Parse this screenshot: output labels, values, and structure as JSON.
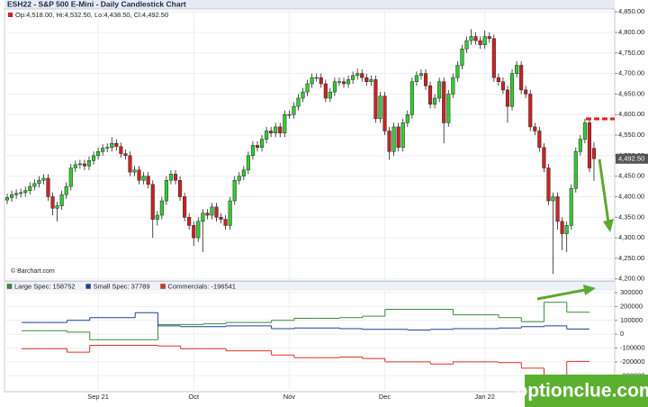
{
  "watermark": "optionclue.com",
  "chart_data": [
    {
      "type": "candlestick",
      "title": "ESH22 - S&P 500 E-Mini - Daily Candlestick Chart",
      "ohlc_label": "Op:4,518.00, Hi:4,532.50, Lo:4,438.50, Cl:4,492.50",
      "source": "© Barchart.com",
      "last_price_label": "4,492.50",
      "up_color": "#33cc33",
      "down_color": "#cc2222",
      "grid": true,
      "categories": [
        null,
        null,
        null,
        null,
        null,
        null,
        null,
        null,
        null,
        null,
        null,
        null,
        null,
        null,
        null,
        null,
        null,
        null,
        null,
        null,
        "Sep 21",
        null,
        null,
        null,
        null,
        null,
        null,
        null,
        null,
        null,
        null,
        null,
        null,
        null,
        null,
        null,
        null,
        null,
        null,
        null,
        null,
        "Oct",
        null,
        null,
        null,
        null,
        null,
        null,
        null,
        null,
        null,
        null,
        null,
        null,
        null,
        null,
        null,
        null,
        null,
        null,
        null,
        null,
        "Nov",
        null,
        null,
        null,
        null,
        null,
        null,
        null,
        null,
        null,
        null,
        null,
        null,
        null,
        null,
        null,
        null,
        null,
        null,
        null,
        null,
        "Dec",
        null,
        null,
        null,
        null,
        null,
        null,
        null,
        null,
        null,
        null,
        null,
        null,
        null,
        null,
        null,
        null,
        null,
        null,
        null,
        null,
        null,
        "Jan 22",
        null,
        null,
        null,
        null,
        null,
        null,
        null,
        null,
        null,
        null,
        null,
        null,
        null,
        null,
        null,
        null,
        null,
        null,
        null,
        null,
        null,
        null,
        null,
        null
      ],
      "open": [
        4392,
        4398,
        4405,
        4408,
        4410,
        4415,
        4425,
        4432,
        4440,
        4445,
        4400,
        4372,
        4378,
        4405,
        4425,
        4470,
        4478,
        4480,
        4475,
        4488,
        4500,
        4510,
        4518,
        4520,
        4530,
        4522,
        4505,
        4500,
        4460,
        4465,
        4440,
        4450,
        4430,
        4345,
        4355,
        4390,
        4440,
        4455,
        4440,
        4400,
        4350,
        4330,
        4300,
        4340,
        4360,
        4355,
        4375,
        4350,
        4345,
        4330,
        4390,
        4440,
        4450,
        4465,
        4500,
        4525,
        4520,
        4540,
        4560,
        4555,
        4570,
        4555,
        4600,
        4600,
        4620,
        4640,
        4655,
        4675,
        4690,
        4690,
        4675,
        4640,
        4655,
        4680,
        4680,
        4675,
        4685,
        4695,
        4700,
        4690,
        4680,
        4685,
        4590,
        4645,
        4560,
        4510,
        4570,
        4520,
        4580,
        4600,
        4680,
        4695,
        4700,
        4670,
        4625,
        4640,
        4680,
        4580,
        4650,
        4690,
        4720,
        4760,
        4780,
        4790,
        4780,
        4770,
        4790,
        4785,
        4690,
        4680,
        4660,
        4620,
        4700,
        4720,
        4660,
        4650,
        4570,
        4560,
        4520,
        4470,
        4390,
        4400,
        4340,
        4310,
        4330,
        4420,
        4510,
        4540,
        4580,
        4518
      ],
      "high": [
        4408,
        4415,
        4418,
        4420,
        4425,
        4435,
        4442,
        4450,
        4455,
        4455,
        4410,
        4388,
        4415,
        4435,
        4480,
        4488,
        4490,
        4490,
        4498,
        4510,
        4520,
        4528,
        4530,
        4545,
        4540,
        4532,
        4515,
        4510,
        4475,
        4475,
        4460,
        4460,
        4440,
        4365,
        4400,
        4450,
        4465,
        4465,
        4450,
        4410,
        4360,
        4340,
        4350,
        4370,
        4370,
        4385,
        4385,
        4360,
        4355,
        4400,
        4450,
        4460,
        4475,
        4510,
        4535,
        4535,
        4550,
        4570,
        4570,
        4580,
        4580,
        4610,
        4610,
        4630,
        4650,
        4665,
        4685,
        4700,
        4700,
        4700,
        4685,
        4665,
        4690,
        4690,
        4690,
        4695,
        4705,
        4712,
        4710,
        4700,
        4695,
        4695,
        4655,
        4655,
        4570,
        4580,
        4580,
        4590,
        4610,
        4690,
        4705,
        4710,
        4710,
        4680,
        4650,
        4690,
        4690,
        4660,
        4700,
        4730,
        4770,
        4790,
        4808,
        4800,
        4790,
        4805,
        4800,
        4795,
        4700,
        4690,
        4670,
        4710,
        4730,
        4730,
        4670,
        4660,
        4580,
        4570,
        4530,
        4480,
        4410,
        4410,
        4350,
        4340,
        4430,
        4520,
        4550,
        4590,
        4590,
        4532.5
      ],
      "low": [
        4382,
        4388,
        4395,
        4398,
        4400,
        4405,
        4415,
        4422,
        4430,
        4390,
        4355,
        4340,
        4368,
        4395,
        4415,
        4460,
        4468,
        4465,
        4465,
        4478,
        4490,
        4500,
        4508,
        4510,
        4512,
        4495,
        4490,
        4450,
        4450,
        4430,
        4430,
        4420,
        4300,
        4330,
        4345,
        4380,
        4430,
        4430,
        4390,
        4340,
        4320,
        4280,
        4290,
        4265,
        4345,
        4345,
        4340,
        4335,
        4320,
        4320,
        4380,
        4430,
        4440,
        4455,
        4490,
        4510,
        4510,
        4530,
        4545,
        4545,
        4545,
        4545,
        4590,
        4590,
        4610,
        4630,
        4645,
        4665,
        4680,
        4665,
        4630,
        4630,
        4645,
        4670,
        4665,
        4665,
        4675,
        4685,
        4680,
        4670,
        4670,
        4580,
        4580,
        4550,
        4490,
        4500,
        4510,
        4510,
        4570,
        4590,
        4670,
        4685,
        4660,
        4615,
        4615,
        4630,
        4530,
        4570,
        4640,
        4680,
        4710,
        4750,
        4770,
        4770,
        4760,
        4760,
        4775,
        4680,
        4670,
        4650,
        4580,
        4610,
        4690,
        4650,
        4640,
        4560,
        4550,
        4510,
        4460,
        4380,
        4212,
        4320,
        4270,
        4265,
        4320,
        4410,
        4500,
        4530,
        4460,
        4438.5
      ],
      "close": [
        4398,
        4405,
        4408,
        4410,
        4415,
        4425,
        4432,
        4440,
        4445,
        4400,
        4372,
        4378,
        4405,
        4425,
        4470,
        4478,
        4480,
        4475,
        4488,
        4500,
        4510,
        4518,
        4520,
        4530,
        4522,
        4505,
        4500,
        4460,
        4465,
        4440,
        4450,
        4430,
        4345,
        4355,
        4390,
        4440,
        4455,
        4440,
        4400,
        4350,
        4330,
        4300,
        4340,
        4360,
        4355,
        4375,
        4350,
        4345,
        4330,
        4390,
        4440,
        4450,
        4465,
        4500,
        4525,
        4520,
        4540,
        4560,
        4555,
        4570,
        4555,
        4600,
        4600,
        4620,
        4640,
        4655,
        4675,
        4690,
        4690,
        4675,
        4640,
        4655,
        4680,
        4680,
        4675,
        4685,
        4695,
        4700,
        4690,
        4680,
        4685,
        4590,
        4645,
        4560,
        4510,
        4570,
        4520,
        4580,
        4600,
        4680,
        4695,
        4700,
        4670,
        4625,
        4640,
        4680,
        4580,
        4650,
        4690,
        4720,
        4760,
        4780,
        4790,
        4780,
        4770,
        4790,
        4785,
        4690,
        4680,
        4660,
        4620,
        4700,
        4720,
        4660,
        4650,
        4570,
        4560,
        4520,
        4470,
        4390,
        4400,
        4340,
        4310,
        4330,
        4420,
        4510,
        4540,
        4580,
        4470,
        4492.5
      ],
      "ylim": [
        4195,
        4857
      ],
      "yticks": [
        {
          "value": 4200,
          "label": "4,200.00"
        },
        {
          "value": 4250,
          "label": "4,250.00"
        },
        {
          "value": 4300,
          "label": "4,300.00"
        },
        {
          "value": 4350,
          "label": "4,350.00"
        },
        {
          "value": 4400,
          "label": "4,400.00"
        },
        {
          "value": 4450,
          "label": "4,450.00"
        },
        {
          "value": 4500,
          "label": "4,500.00"
        },
        {
          "value": 4550,
          "label": "4,550.00"
        },
        {
          "value": 4600,
          "label": "4,600.00"
        },
        {
          "value": 4650,
          "label": "4,650.00"
        },
        {
          "value": 4700,
          "label": "4,700.00"
        },
        {
          "value": 4750,
          "label": "4,750.00"
        },
        {
          "value": 4800,
          "label": "4,800.00"
        },
        {
          "value": 4850,
          "label": "4,850.00"
        }
      ]
    },
    {
      "type": "line",
      "step": true,
      "grid": true,
      "series": [
        {
          "name": "Large Spec: 158752",
          "color": "#3a8a3a",
          "values": [
            25000,
            25000,
            15000,
            -40000,
            -40000,
            -40000,
            70000,
            70000,
            75000,
            85000,
            85000,
            100000,
            115000,
            115000,
            120000,
            130000,
            180000,
            180000,
            180000,
            140000,
            140000,
            120000,
            90000,
            230000,
            158752
          ]
        },
        {
          "name": "Small Spec: 37789",
          "color": "#1f3f9a",
          "values": [
            85000,
            85000,
            100000,
            120000,
            120000,
            155000,
            60000,
            55000,
            55000,
            60000,
            60000,
            40000,
            45000,
            45000,
            40000,
            35000,
            35000,
            30000,
            35000,
            40000,
            40000,
            45000,
            55000,
            60000,
            37789
          ]
        },
        {
          "name": "Commercials: -196541",
          "color": "#e03020",
          "values": [
            -105000,
            -105000,
            -130000,
            -80000,
            -80000,
            -80000,
            -85000,
            -105000,
            -105000,
            -120000,
            -120000,
            -150000,
            -170000,
            -170000,
            -165000,
            -175000,
            -200000,
            -200000,
            -215000,
            -200000,
            -200000,
            -205000,
            -245000,
            -330000,
            -196541
          ]
        }
      ],
      "ylim": [
        -415000,
        378000
      ],
      "yticks": [
        -300000,
        -200000,
        -100000,
        0,
        100000,
        200000,
        300000
      ]
    }
  ]
}
